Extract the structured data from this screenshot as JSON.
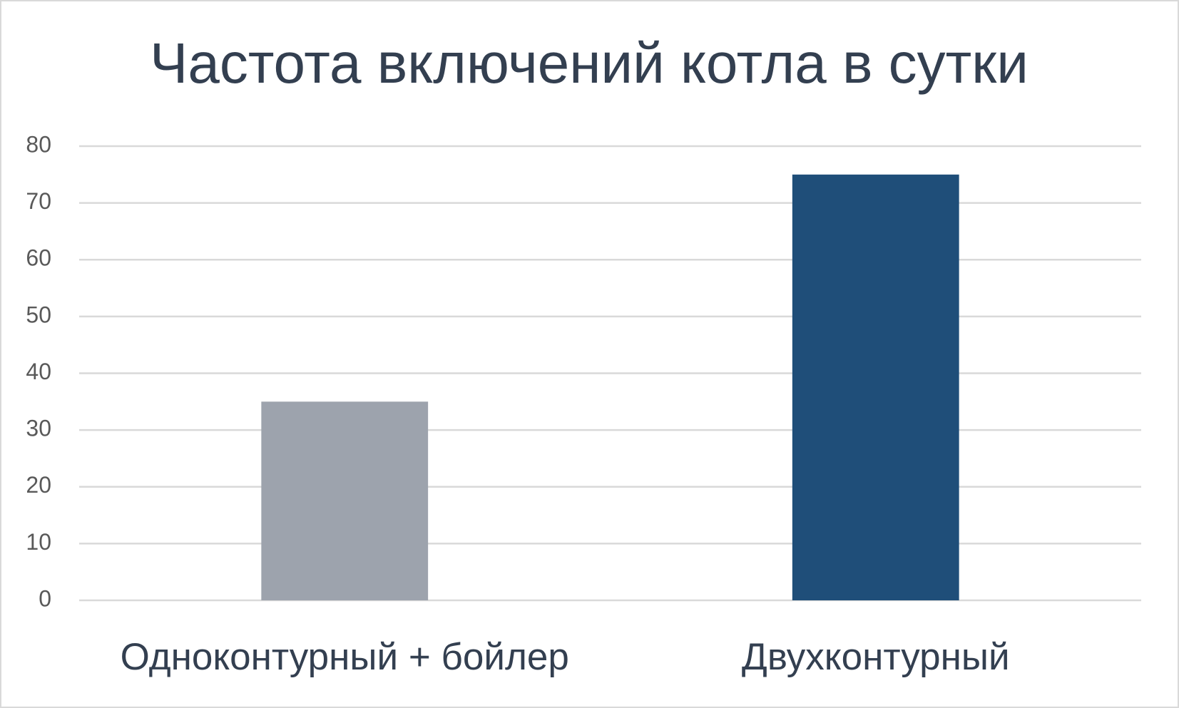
{
  "chart_data": {
    "type": "bar",
    "title": "Частота включений котла в сутки",
    "categories": [
      "Одноконтурный + бойлер",
      "Двухконтурный"
    ],
    "values": [
      35,
      75
    ],
    "colors": [
      "#9da3ad",
      "#1f4e79"
    ],
    "ylim": [
      0,
      80
    ],
    "yticks": [
      0,
      10,
      20,
      30,
      40,
      50,
      60,
      70,
      80
    ],
    "grid": true
  }
}
